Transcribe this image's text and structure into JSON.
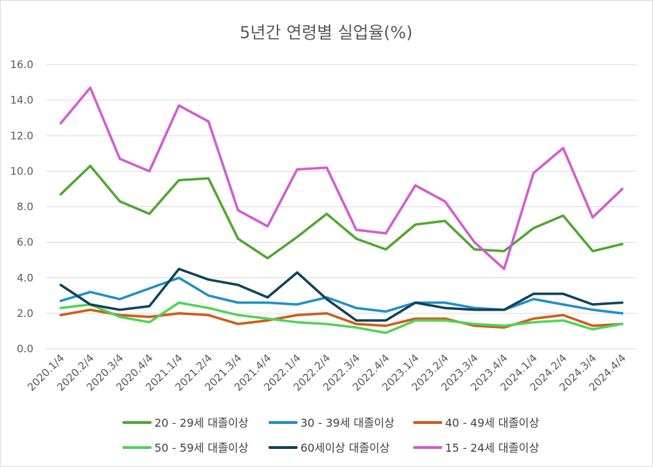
{
  "chart_data": {
    "type": "line",
    "title": "5년간 연령별 실업율(%)",
    "xlabel": "",
    "ylabel": "",
    "ylim": [
      0,
      16
    ],
    "yticks": [
      "0.0",
      "2.0",
      "4.0",
      "6.0",
      "8.0",
      "10.0",
      "12.0",
      "14.0",
      "16.0"
    ],
    "grid": true,
    "legend_position": "bottom",
    "categories": [
      "2020.1/4",
      "2020.2/4",
      "2020.3/4",
      "2020.4/4",
      "2021.1/4",
      "2021.2/4",
      "2021.3/4",
      "2021.4/4",
      "2022.1/4",
      "2022.2/4",
      "2022.3/4",
      "2022.4/4",
      "2023.1/4",
      "2023.2/4",
      "2023.3/4",
      "2023.4/4",
      "2024.1/4",
      "2024.2/4",
      "2024.3/4",
      "2024.4/4"
    ],
    "series": [
      {
        "name": "20 - 29세 대졸이상",
        "color": "#4ea72e",
        "values": [
          8.7,
          10.3,
          8.3,
          7.6,
          9.5,
          9.6,
          6.2,
          5.1,
          6.3,
          7.6,
          6.2,
          5.6,
          7.0,
          7.2,
          5.6,
          5.5,
          6.8,
          7.5,
          5.5,
          5.9
        ]
      },
      {
        "name": "30 - 39세 대졸이상",
        "color": "#1f8fc8",
        "values": [
          2.7,
          3.2,
          2.8,
          3.4,
          4.0,
          3.0,
          2.6,
          2.6,
          2.5,
          2.9,
          2.3,
          2.1,
          2.6,
          2.6,
          2.3,
          2.2,
          2.8,
          2.5,
          2.2,
          2.0
        ]
      },
      {
        "name": "40 - 49세 대졸이상",
        "color": "#d35a16",
        "values": [
          1.9,
          2.2,
          1.9,
          1.8,
          2.0,
          1.9,
          1.4,
          1.6,
          1.9,
          2.0,
          1.4,
          1.3,
          1.7,
          1.7,
          1.3,
          1.2,
          1.7,
          1.9,
          1.3,
          1.4
        ]
      },
      {
        "name": "50 - 59세 대졸이상",
        "color": "#4fd35a",
        "values": [
          2.3,
          2.5,
          1.8,
          1.5,
          2.6,
          2.3,
          1.9,
          1.7,
          1.5,
          1.4,
          1.2,
          0.9,
          1.6,
          1.6,
          1.4,
          1.3,
          1.5,
          1.6,
          1.1,
          1.4
        ]
      },
      {
        "name": "60세이상 대졸이상",
        "color": "#0e4259",
        "values": [
          3.6,
          2.5,
          2.2,
          2.4,
          4.5,
          3.9,
          3.6,
          2.9,
          4.3,
          2.8,
          1.6,
          1.6,
          2.6,
          2.3,
          2.2,
          2.2,
          3.1,
          3.1,
          2.5,
          2.6
        ]
      },
      {
        "name": "15 - 24세 대졸이상",
        "color": "#d35ad3",
        "values": [
          12.7,
          14.7,
          10.7,
          10.0,
          13.7,
          12.8,
          7.8,
          6.9,
          10.1,
          10.2,
          6.7,
          6.5,
          9.2,
          8.3,
          6.0,
          4.5,
          9.9,
          11.3,
          7.4,
          9.0
        ]
      }
    ]
  }
}
